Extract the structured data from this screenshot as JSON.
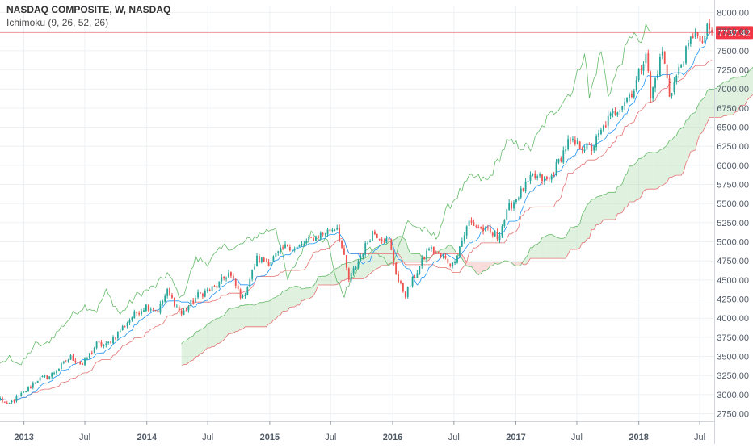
{
  "header": {
    "title": "NASDAQ COMPOSITE, W, NASDAQ",
    "indicator": "Ichimoku (9, 26, 52, 26)"
  },
  "colors": {
    "up": "#26a69a",
    "down": "#ef5350",
    "conversion": "#2196f3",
    "base": "#e57373",
    "lagging": "#66bb6a",
    "cloud_bull": "#a5d6a7",
    "cloud_bear": "#ef9a9a",
    "last_price_bg": "#f23645",
    "grid": "#eef1f4"
  },
  "chart_data": {
    "type": "candlestick",
    "title": "NASDAQ COMPOSITE, W, NASDAQ",
    "indicator": "Ichimoku (9, 26, 52, 26)",
    "last_price": "7737.42",
    "y_ticks": [
      "8000.00",
      "7750.00",
      "7500.00",
      "7250.00",
      "7000.00",
      "6750.00",
      "6500.00",
      "6250.00",
      "6000.00",
      "5750.00",
      "5500.00",
      "5250.00",
      "5000.00",
      "4750.00",
      "4500.00",
      "4250.00",
      "4000.00",
      "3750.00",
      "3500.00",
      "3250.00",
      "3000.00",
      "2750.00"
    ],
    "x_ticks": [
      {
        "label": "2013",
        "bold": true
      },
      {
        "label": "Jul",
        "bold": false
      },
      {
        "label": "2014",
        "bold": true
      },
      {
        "label": "Jul",
        "bold": false
      },
      {
        "label": "2015",
        "bold": true
      },
      {
        "label": "Jul",
        "bold": false
      },
      {
        "label": "2016",
        "bold": true
      },
      {
        "label": "Jul",
        "bold": false
      },
      {
        "label": "2017",
        "bold": true
      },
      {
        "label": "Jul",
        "bold": false
      },
      {
        "label": "2018",
        "bold": true
      },
      {
        "label": "Jul",
        "bold": false
      }
    ],
    "ylim": [
      2650,
      8080
    ],
    "x_domain": [
      "2012-10-22",
      "2018-08-13"
    ],
    "anchors": [
      [
        "2012-10-22",
        2950
      ],
      [
        "2012-11-12",
        2860
      ],
      [
        "2012-12-31",
        3020
      ],
      [
        "2013-02-11",
        3200
      ],
      [
        "2013-03-18",
        3240
      ],
      [
        "2013-05-20",
        3490
      ],
      [
        "2013-06-24",
        3390
      ],
      [
        "2013-08-05",
        3660
      ],
      [
        "2013-09-02",
        3640
      ],
      [
        "2013-11-25",
        4050
      ],
      [
        "2013-12-30",
        4160
      ],
      [
        "2014-02-03",
        4100
      ],
      [
        "2014-03-03",
        4350
      ],
      [
        "2014-04-14",
        4050
      ],
      [
        "2014-06-02",
        4300
      ],
      [
        "2014-07-28",
        4420
      ],
      [
        "2014-09-01",
        4590
      ],
      [
        "2014-10-13",
        4250
      ],
      [
        "2014-11-24",
        4780
      ],
      [
        "2014-12-29",
        4730
      ],
      [
        "2015-02-23",
        4960
      ],
      [
        "2015-03-16",
        4900
      ],
      [
        "2015-05-11",
        5050
      ],
      [
        "2015-07-20",
        5200
      ],
      [
        "2015-08-24",
        4500
      ],
      [
        "2015-11-02",
        5130
      ],
      [
        "2015-12-21",
        5000
      ],
      [
        "2016-01-18",
        4480
      ],
      [
        "2016-02-08",
        4310
      ],
      [
        "2016-04-18",
        4920
      ],
      [
        "2016-06-27",
        4700
      ],
      [
        "2016-08-15",
        5260
      ],
      [
        "2016-11-07",
        5060
      ],
      [
        "2016-12-12",
        5450
      ],
      [
        "2017-02-20",
        5850
      ],
      [
        "2017-04-10",
        5800
      ],
      [
        "2017-06-05",
        6300
      ],
      [
        "2017-08-14",
        6220
      ],
      [
        "2017-10-02",
        6600
      ],
      [
        "2017-12-18",
        7000
      ],
      [
        "2018-01-22",
        7500
      ],
      [
        "2018-02-05",
        6880
      ],
      [
        "2018-03-12",
        7500
      ],
      [
        "2018-04-02",
        6930
      ],
      [
        "2018-06-18",
        7790
      ],
      [
        "2018-07-02",
        7550
      ],
      [
        "2018-07-23",
        7770
      ],
      [
        "2018-08-06",
        7737
      ]
    ],
    "series": [
      {
        "name": "Price"
      },
      {
        "name": "Conversion Line"
      },
      {
        "name": "Base Line"
      },
      {
        "name": "Lagging Span"
      },
      {
        "name": "Leading Span A"
      },
      {
        "name": "Leading Span B"
      }
    ],
    "grid": true,
    "legend": "none"
  }
}
